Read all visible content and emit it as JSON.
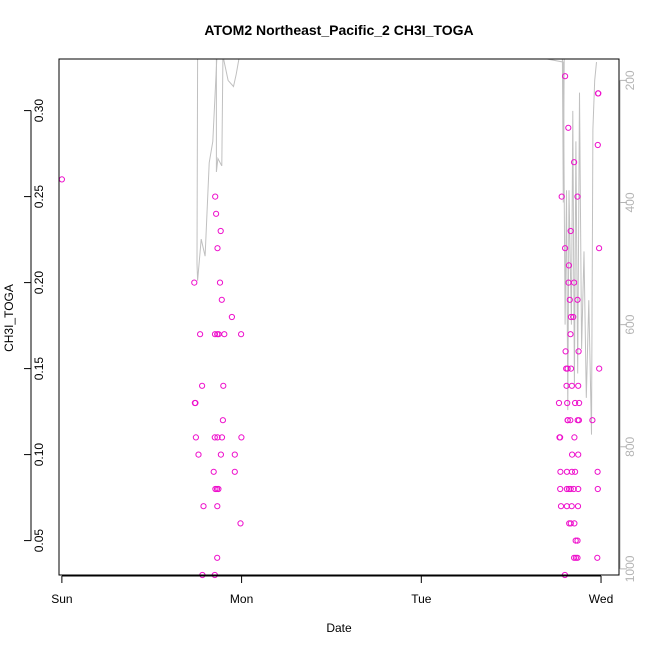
{
  "chart_data": {
    "type": "scatter",
    "title": "ATOM2 Northeast_Pacific_2 CH3I_TOGA",
    "xlabel": "Date",
    "ylabel": "CH3I_TOGA",
    "x_ticks": [
      {
        "label": "Sun",
        "day": 0
      },
      {
        "label": "Mon",
        "day": 1
      },
      {
        "label": "Tue",
        "day": 2
      },
      {
        "label": "Wed",
        "day": 3
      }
    ],
    "xlim_days": [
      -0.016,
      3.1
    ],
    "ylim": [
      0.03,
      0.33
    ],
    "y_ticks": [
      0.05,
      0.1,
      0.15,
      0.2,
      0.25,
      0.3
    ],
    "y_tick_labels": [
      "0.05",
      "0.10",
      "0.15",
      "0.20",
      "0.25",
      "0.30"
    ],
    "y2_ticks": [
      200,
      400,
      600,
      800,
      1000
    ],
    "y2_tick_labels": [
      "200",
      "400",
      "600",
      "800",
      "1000"
    ],
    "y2_lim_reversed": [
      1010,
      165
    ],
    "grid": false,
    "legend": "none",
    "colors": {
      "points": "#ee10cc",
      "altitude": "#c0c0c0",
      "axis": "#000000",
      "axis2": "#b4b4b4"
    },
    "series": [
      {
        "points": [
          [
            0.0,
            0.26
          ],
          [
            0.737,
            0.2
          ],
          [
            0.74,
            0.13
          ],
          [
            0.743,
            0.13
          ],
          [
            0.746,
            0.11
          ],
          [
            0.76,
            0.1
          ],
          [
            0.769,
            0.17
          ],
          [
            0.78,
            0.14
          ],
          [
            0.788,
            0.07
          ],
          [
            0.782,
            0.03
          ],
          [
            0.853,
            0.25
          ],
          [
            0.858,
            0.24
          ],
          [
            0.866,
            0.22
          ],
          [
            0.884,
            0.23
          ],
          [
            0.88,
            0.2
          ],
          [
            0.89,
            0.19
          ],
          [
            0.852,
            0.17
          ],
          [
            0.864,
            0.17
          ],
          [
            0.872,
            0.17
          ],
          [
            0.904,
            0.17
          ],
          [
            0.898,
            0.14
          ],
          [
            0.896,
            0.12
          ],
          [
            0.851,
            0.11
          ],
          [
            0.866,
            0.11
          ],
          [
            0.891,
            0.11
          ],
          [
            0.885,
            0.1
          ],
          [
            0.845,
            0.09
          ],
          [
            0.863,
            0.08
          ],
          [
            0.854,
            0.08
          ],
          [
            0.871,
            0.08
          ],
          [
            0.865,
            0.07
          ],
          [
            0.864,
            0.04
          ],
          [
            0.851,
            0.03
          ],
          [
            0.946,
            0.18
          ],
          [
            0.962,
            0.1
          ],
          [
            0.962,
            0.09
          ],
          [
            0.997,
            0.17
          ],
          [
            0.999,
            0.11
          ],
          [
            0.994,
            0.06
          ],
          [
            2.781,
            0.25
          ],
          [
            2.766,
            0.13
          ],
          [
            2.772,
            0.11
          ],
          [
            2.769,
            0.11
          ],
          [
            2.774,
            0.09
          ],
          [
            2.773,
            0.08
          ],
          [
            2.777,
            0.07
          ],
          [
            2.8,
            0.32
          ],
          [
            2.8,
            0.22
          ],
          [
            2.803,
            0.16
          ],
          [
            2.806,
            0.15
          ],
          [
            2.808,
            0.14
          ],
          [
            2.812,
            0.13
          ],
          [
            2.814,
            0.12
          ],
          [
            2.81,
            0.09
          ],
          [
            2.81,
            0.08
          ],
          [
            2.81,
            0.07
          ],
          [
            2.799,
            0.03
          ],
          [
            2.818,
            0.29
          ],
          [
            2.821,
            0.21
          ],
          [
            2.819,
            0.2
          ],
          [
            2.826,
            0.19
          ],
          [
            2.831,
            0.23
          ],
          [
            2.833,
            0.18
          ],
          [
            2.83,
            0.17
          ],
          [
            2.833,
            0.15
          ],
          [
            2.838,
            0.14
          ],
          [
            2.829,
            0.12
          ],
          [
            2.839,
            0.1
          ],
          [
            2.838,
            0.09
          ],
          [
            2.822,
            0.08
          ],
          [
            2.837,
            0.07
          ],
          [
            2.823,
            0.06
          ],
          [
            2.85,
            0.27
          ],
          [
            2.85,
            0.2
          ],
          [
            2.845,
            0.18
          ],
          [
            2.856,
            0.13
          ],
          [
            2.852,
            0.11
          ],
          [
            2.856,
            0.09
          ],
          [
            2.848,
            0.08
          ],
          [
            2.852,
            0.06
          ],
          [
            2.859,
            0.05
          ],
          [
            2.85,
            0.04
          ],
          [
            2.869,
            0.25
          ],
          [
            2.869,
            0.19
          ],
          [
            2.875,
            0.16
          ],
          [
            2.873,
            0.14
          ],
          [
            2.878,
            0.13
          ],
          [
            2.87,
            0.12
          ],
          [
            2.873,
            0.1
          ],
          [
            2.873,
            0.08
          ],
          [
            2.872,
            0.07
          ],
          [
            2.869,
            0.05
          ],
          [
            2.86,
            0.04
          ],
          [
            2.869,
            0.04
          ],
          [
            2.831,
            0.08
          ],
          [
            2.814,
            0.15
          ],
          [
            2.815,
            0.12
          ],
          [
            2.877,
            0.12
          ],
          [
            2.832,
            0.06
          ],
          [
            2.952,
            0.12
          ],
          [
            2.983,
            0.31
          ],
          [
            2.985,
            0.31
          ],
          [
            2.982,
            0.28
          ],
          [
            2.989,
            0.22
          ],
          [
            2.99,
            0.15
          ],
          [
            2.981,
            0.09
          ],
          [
            2.982,
            0.08
          ],
          [
            2.979,
            0.04
          ]
        ]
      }
    ],
    "altitude_segments": [
      [
        [
          0.755,
          165
        ],
        [
          0.752,
          500
        ],
        [
          0.755,
          528
        ],
        [
          0.775,
          460
        ],
        [
          0.797,
          488
        ],
        [
          0.82,
          335
        ],
        [
          0.84,
          300
        ],
        [
          0.862,
          165
        ]
      ],
      [
        [
          0.86,
          165
        ],
        [
          0.86,
          350
        ],
        [
          0.868,
          328
        ],
        [
          0.89,
          340
        ],
        [
          0.896,
          165
        ]
      ],
      [
        [
          0.9,
          165
        ],
        [
          0.925,
          200
        ],
        [
          0.955,
          210
        ],
        [
          0.97,
          190
        ],
        [
          0.985,
          165
        ]
      ],
      [
        [
          2.7,
          165
        ],
        [
          2.79,
          170
        ],
        [
          2.8,
          600
        ],
        [
          2.808,
          380
        ],
        [
          2.815,
          740
        ],
        [
          2.822,
          380
        ],
        [
          2.835,
          600
        ],
        [
          2.843,
          250
        ],
        [
          2.852,
          700
        ],
        [
          2.86,
          300
        ],
        [
          2.87,
          680
        ],
        [
          2.88,
          220
        ],
        [
          2.892,
          640
        ],
        [
          2.905,
          480
        ],
        [
          2.918,
          720
        ],
        [
          2.932,
          560
        ],
        [
          2.947,
          780
        ],
        [
          2.955,
          280
        ],
        [
          2.965,
          200
        ],
        [
          2.975,
          170
        ]
      ],
      [
        [
          2.785,
          165
        ],
        [
          2.79,
          400
        ],
        [
          2.795,
          165
        ]
      ]
    ]
  }
}
